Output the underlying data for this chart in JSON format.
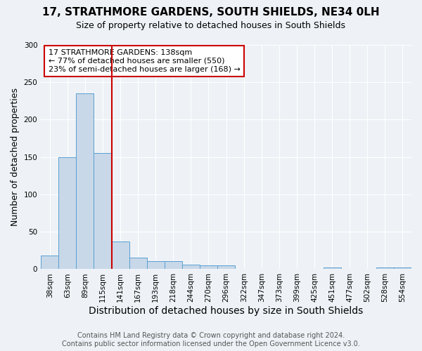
{
  "title": "17, STRATHMORE GARDENS, SOUTH SHIELDS, NE34 0LH",
  "subtitle": "Size of property relative to detached houses in South Shields",
  "xlabel": "Distribution of detached houses by size in South Shields",
  "ylabel": "Number of detached properties",
  "footer_line1": "Contains HM Land Registry data © Crown copyright and database right 2024.",
  "footer_line2": "Contains public sector information licensed under the Open Government Licence v3.0.",
  "categories": [
    "38sqm",
    "63sqm",
    "89sqm",
    "115sqm",
    "141sqm",
    "167sqm",
    "193sqm",
    "218sqm",
    "244sqm",
    "270sqm",
    "296sqm",
    "322sqm",
    "347sqm",
    "373sqm",
    "399sqm",
    "425sqm",
    "451sqm",
    "477sqm",
    "502sqm",
    "528sqm",
    "554sqm"
  ],
  "values": [
    18,
    150,
    235,
    155,
    37,
    15,
    11,
    11,
    6,
    5,
    5,
    0,
    0,
    0,
    0,
    0,
    2,
    0,
    0,
    2,
    2
  ],
  "bar_color": "#c8d8e8",
  "bar_edge_color": "#5a9fd4",
  "ylim": [
    0,
    300
  ],
  "yticks": [
    0,
    50,
    100,
    150,
    200,
    250,
    300
  ],
  "property_bin_index": 4,
  "annotation_line1": "17 STRATHMORE GARDENS: 138sqm",
  "annotation_line2": "← 77% of detached houses are smaller (550)",
  "annotation_line3": "23% of semi-detached houses are larger (168) →",
  "annotation_box_color": "#ffffff",
  "annotation_box_edge_color": "#cc0000",
  "vline_color": "#cc0000",
  "bg_color": "#eef2f6",
  "title_fontsize": 11,
  "subtitle_fontsize": 9,
  "xlabel_fontsize": 10,
  "ylabel_fontsize": 9,
  "tick_fontsize": 7.5,
  "annotation_fontsize": 8,
  "footer_fontsize": 7
}
